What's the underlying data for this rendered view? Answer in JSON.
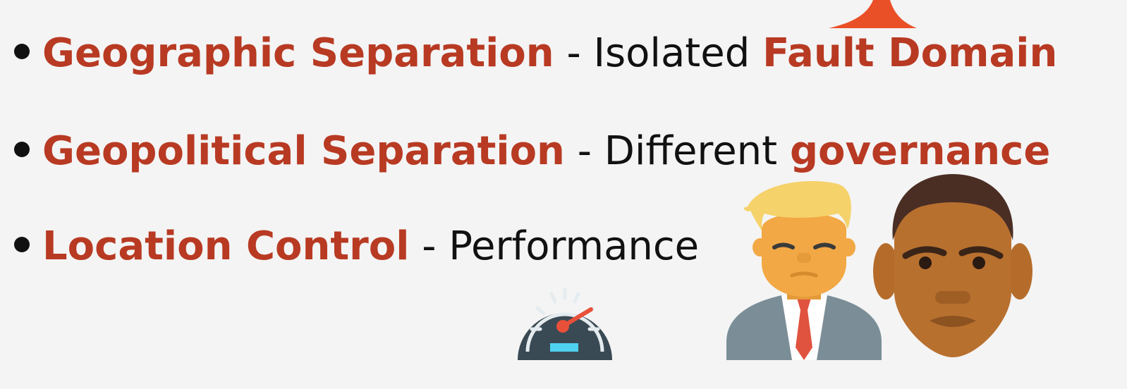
{
  "bullets": [
    {
      "term": "Geographic Separation",
      "sep": " - ",
      "desc": "Isolated ",
      "highlight": "Fault Domain"
    },
    {
      "term": "Geopolitical Separation",
      "sep": " - ",
      "desc": "Different ",
      "highlight": "governance"
    },
    {
      "term": "Location Control",
      "sep": " - ",
      "desc": "Performance",
      "highlight": ""
    }
  ],
  "colors": {
    "background": "#f4f4f4",
    "accent": "#b83a23",
    "text": "#111111",
    "top_shape": "#ea5028"
  },
  "icons": [
    "speedometer-icon",
    "person-left-icon",
    "person-right-icon"
  ]
}
